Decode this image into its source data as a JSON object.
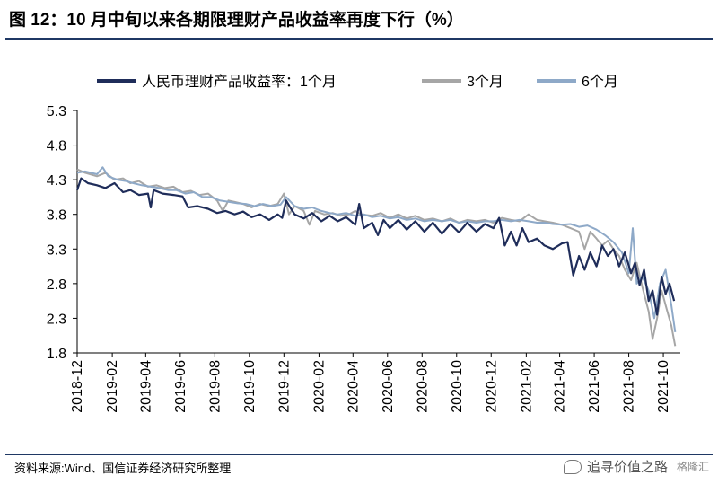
{
  "header": {
    "title": "图 12：10 月中旬以来各期限理财产品收益率再度下行（%）"
  },
  "footer": {
    "source": "资料来源:Wind、国信证券经济研究所整理",
    "watermark": "追寻价值之路",
    "watermark_brand": "格隆汇"
  },
  "chart_data": {
    "type": "line",
    "title": "",
    "xlabel": "",
    "ylabel": "",
    "ylim": [
      1.8,
      5.3
    ],
    "yticks": [
      1.8,
      2.3,
      2.8,
      3.3,
      3.8,
      4.3,
      4.8,
      5.3
    ],
    "xlim": [
      "2018-12-01",
      "2021-10-31"
    ],
    "xticks": [
      "2018-12",
      "2019-02",
      "2019-04",
      "2019-06",
      "2019-08",
      "2019-10",
      "2019-12",
      "2020-02",
      "2020-04",
      "2020-06",
      "2020-08",
      "2020-10",
      "2020-12",
      "2021-02",
      "2021-04",
      "2021-06",
      "2021-08",
      "2021-10"
    ],
    "grid": false,
    "legend_position": "top",
    "series": [
      {
        "name": "人民币理财产品收益率：1个月",
        "color": "#1f2d5a",
        "points": [
          [
            "2018-12-01",
            4.15
          ],
          [
            "2018-12-08",
            4.32
          ],
          [
            "2018-12-20",
            4.25
          ],
          [
            "2019-01-05",
            4.22
          ],
          [
            "2019-01-20",
            4.18
          ],
          [
            "2019-02-05",
            4.25
          ],
          [
            "2019-02-20",
            4.12
          ],
          [
            "2019-03-05",
            4.15
          ],
          [
            "2019-03-20",
            4.08
          ],
          [
            "2019-04-05",
            4.1
          ],
          [
            "2019-04-10",
            3.9
          ],
          [
            "2019-04-15",
            4.15
          ],
          [
            "2019-05-01",
            4.1
          ],
          [
            "2019-05-20",
            4.08
          ],
          [
            "2019-06-05",
            4.06
          ],
          [
            "2019-06-15",
            3.9
          ],
          [
            "2019-07-01",
            3.92
          ],
          [
            "2019-07-20",
            3.88
          ],
          [
            "2019-08-05",
            3.82
          ],
          [
            "2019-08-20",
            3.85
          ],
          [
            "2019-09-05",
            3.8
          ],
          [
            "2019-09-20",
            3.84
          ],
          [
            "2019-10-05",
            3.76
          ],
          [
            "2019-10-20",
            3.8
          ],
          [
            "2019-11-05",
            3.72
          ],
          [
            "2019-11-20",
            3.8
          ],
          [
            "2019-11-28",
            3.75
          ],
          [
            "2019-12-05",
            4.0
          ],
          [
            "2019-12-12",
            3.9
          ],
          [
            "2019-12-20",
            3.8
          ],
          [
            "2020-01-05",
            3.74
          ],
          [
            "2020-01-20",
            3.82
          ],
          [
            "2020-02-05",
            3.7
          ],
          [
            "2020-02-20",
            3.78
          ],
          [
            "2020-03-05",
            3.7
          ],
          [
            "2020-03-20",
            3.76
          ],
          [
            "2020-04-05",
            3.65
          ],
          [
            "2020-04-12",
            3.95
          ],
          [
            "2020-04-20",
            3.6
          ],
          [
            "2020-05-05",
            3.68
          ],
          [
            "2020-05-15",
            3.5
          ],
          [
            "2020-05-25",
            3.72
          ],
          [
            "2020-06-05",
            3.6
          ],
          [
            "2020-06-20",
            3.72
          ],
          [
            "2020-07-05",
            3.58
          ],
          [
            "2020-07-20",
            3.7
          ],
          [
            "2020-08-05",
            3.55
          ],
          [
            "2020-08-20",
            3.68
          ],
          [
            "2020-09-05",
            3.52
          ],
          [
            "2020-09-20",
            3.66
          ],
          [
            "2020-10-05",
            3.54
          ],
          [
            "2020-10-20",
            3.68
          ],
          [
            "2020-11-05",
            3.55
          ],
          [
            "2020-11-20",
            3.66
          ],
          [
            "2020-12-05",
            3.6
          ],
          [
            "2020-12-15",
            3.75
          ],
          [
            "2020-12-25",
            3.35
          ],
          [
            "2021-01-05",
            3.55
          ],
          [
            "2021-01-15",
            3.35
          ],
          [
            "2021-01-25",
            3.6
          ],
          [
            "2021-02-05",
            3.4
          ],
          [
            "2021-02-20",
            3.45
          ],
          [
            "2021-03-05",
            3.35
          ],
          [
            "2021-03-20",
            3.3
          ],
          [
            "2021-04-05",
            3.38
          ],
          [
            "2021-04-15",
            3.4
          ],
          [
            "2021-04-25",
            2.92
          ],
          [
            "2021-05-05",
            3.2
          ],
          [
            "2021-05-15",
            3.0
          ],
          [
            "2021-05-25",
            3.25
          ],
          [
            "2021-06-05",
            3.05
          ],
          [
            "2021-06-15",
            3.35
          ],
          [
            "2021-06-25",
            3.2
          ],
          [
            "2021-07-05",
            3.3
          ],
          [
            "2021-07-15",
            3.05
          ],
          [
            "2021-07-25",
            3.25
          ],
          [
            "2021-08-05",
            2.95
          ],
          [
            "2021-08-12",
            3.1
          ],
          [
            "2021-08-20",
            2.78
          ],
          [
            "2021-08-28",
            3.0
          ],
          [
            "2021-09-05",
            2.55
          ],
          [
            "2021-09-12",
            2.7
          ],
          [
            "2021-09-20",
            2.35
          ],
          [
            "2021-09-28",
            2.9
          ],
          [
            "2021-10-05",
            2.65
          ],
          [
            "2021-10-12",
            2.8
          ],
          [
            "2021-10-20",
            2.55
          ]
        ]
      },
      {
        "name": "3个月",
        "color": "#a6a6a6",
        "points": [
          [
            "2018-12-01",
            4.45
          ],
          [
            "2018-12-15",
            4.4
          ],
          [
            "2019-01-05",
            4.35
          ],
          [
            "2019-01-20",
            4.4
          ],
          [
            "2019-02-05",
            4.3
          ],
          [
            "2019-02-20",
            4.32
          ],
          [
            "2019-03-05",
            4.25
          ],
          [
            "2019-03-20",
            4.28
          ],
          [
            "2019-04-05",
            4.2
          ],
          [
            "2019-04-20",
            4.22
          ],
          [
            "2019-05-05",
            4.18
          ],
          [
            "2019-05-20",
            4.2
          ],
          [
            "2019-06-05",
            4.12
          ],
          [
            "2019-06-20",
            4.14
          ],
          [
            "2019-07-05",
            4.08
          ],
          [
            "2019-07-20",
            4.1
          ],
          [
            "2019-08-05",
            4.0
          ],
          [
            "2019-08-15",
            3.85
          ],
          [
            "2019-08-25",
            4.0
          ],
          [
            "2019-09-05",
            3.98
          ],
          [
            "2019-09-20",
            3.95
          ],
          [
            "2019-10-05",
            3.9
          ],
          [
            "2019-10-20",
            3.95
          ],
          [
            "2019-11-05",
            3.92
          ],
          [
            "2019-11-20",
            3.95
          ],
          [
            "2019-12-01",
            4.1
          ],
          [
            "2019-12-10",
            3.8
          ],
          [
            "2019-12-20",
            3.92
          ],
          [
            "2020-01-05",
            3.85
          ],
          [
            "2020-01-15",
            3.65
          ],
          [
            "2020-01-25",
            3.85
          ],
          [
            "2020-02-10",
            3.8
          ],
          [
            "2020-02-25",
            3.82
          ],
          [
            "2020-03-10",
            3.78
          ],
          [
            "2020-03-25",
            3.8
          ],
          [
            "2020-04-05",
            3.85
          ],
          [
            "2020-04-15",
            3.8
          ],
          [
            "2020-05-05",
            3.78
          ],
          [
            "2020-05-20",
            3.82
          ],
          [
            "2020-06-05",
            3.75
          ],
          [
            "2020-06-20",
            3.8
          ],
          [
            "2020-07-05",
            3.74
          ],
          [
            "2020-07-20",
            3.78
          ],
          [
            "2020-08-05",
            3.72
          ],
          [
            "2020-08-20",
            3.74
          ],
          [
            "2020-09-05",
            3.7
          ],
          [
            "2020-09-20",
            3.74
          ],
          [
            "2020-10-05",
            3.68
          ],
          [
            "2020-10-20",
            3.72
          ],
          [
            "2020-11-05",
            3.7
          ],
          [
            "2020-11-20",
            3.72
          ],
          [
            "2020-12-05",
            3.68
          ],
          [
            "2020-12-20",
            3.75
          ],
          [
            "2021-01-05",
            3.72
          ],
          [
            "2021-01-20",
            3.7
          ],
          [
            "2021-02-05",
            3.8
          ],
          [
            "2021-02-20",
            3.72
          ],
          [
            "2021-03-05",
            3.7
          ],
          [
            "2021-03-20",
            3.68
          ],
          [
            "2021-04-05",
            3.65
          ],
          [
            "2021-04-20",
            3.6
          ],
          [
            "2021-05-05",
            3.55
          ],
          [
            "2021-05-15",
            3.3
          ],
          [
            "2021-05-25",
            3.55
          ],
          [
            "2021-06-05",
            3.45
          ],
          [
            "2021-06-15",
            3.35
          ],
          [
            "2021-06-25",
            3.42
          ],
          [
            "2021-07-05",
            3.3
          ],
          [
            "2021-07-15",
            3.2
          ],
          [
            "2021-07-25",
            3.0
          ],
          [
            "2021-08-05",
            2.85
          ],
          [
            "2021-08-15",
            3.1
          ],
          [
            "2021-08-25",
            2.75
          ],
          [
            "2021-09-05",
            2.4
          ],
          [
            "2021-09-12",
            2.0
          ],
          [
            "2021-09-20",
            2.3
          ],
          [
            "2021-09-28",
            2.7
          ],
          [
            "2021-10-08",
            2.4
          ],
          [
            "2021-10-15",
            2.2
          ],
          [
            "2021-10-22",
            1.9
          ]
        ]
      },
      {
        "name": "6个月",
        "color": "#8ea9c8",
        "points": [
          [
            "2018-12-01",
            4.4
          ],
          [
            "2018-12-15",
            4.42
          ],
          [
            "2019-01-05",
            4.38
          ],
          [
            "2019-01-15",
            4.48
          ],
          [
            "2019-01-25",
            4.35
          ],
          [
            "2019-02-10",
            4.3
          ],
          [
            "2019-02-25",
            4.28
          ],
          [
            "2019-03-10",
            4.25
          ],
          [
            "2019-03-25",
            4.22
          ],
          [
            "2019-04-10",
            4.2
          ],
          [
            "2019-04-25",
            4.18
          ],
          [
            "2019-05-10",
            4.15
          ],
          [
            "2019-05-25",
            4.15
          ],
          [
            "2019-06-10",
            4.1
          ],
          [
            "2019-06-25",
            4.12
          ],
          [
            "2019-07-10",
            4.05
          ],
          [
            "2019-07-25",
            4.05
          ],
          [
            "2019-08-10",
            4.0
          ],
          [
            "2019-08-25",
            3.98
          ],
          [
            "2019-09-10",
            3.96
          ],
          [
            "2019-09-25",
            3.95
          ],
          [
            "2019-10-10",
            3.92
          ],
          [
            "2019-10-25",
            3.95
          ],
          [
            "2019-11-10",
            3.92
          ],
          [
            "2019-11-25",
            3.94
          ],
          [
            "2019-12-05",
            4.05
          ],
          [
            "2019-12-20",
            3.92
          ],
          [
            "2020-01-05",
            3.88
          ],
          [
            "2020-01-20",
            3.9
          ],
          [
            "2020-02-05",
            3.85
          ],
          [
            "2020-02-20",
            3.82
          ],
          [
            "2020-03-05",
            3.8
          ],
          [
            "2020-03-20",
            3.82
          ],
          [
            "2020-04-05",
            3.78
          ],
          [
            "2020-04-20",
            3.8
          ],
          [
            "2020-05-05",
            3.76
          ],
          [
            "2020-05-20",
            3.78
          ],
          [
            "2020-06-05",
            3.74
          ],
          [
            "2020-06-20",
            3.76
          ],
          [
            "2020-07-05",
            3.72
          ],
          [
            "2020-07-20",
            3.74
          ],
          [
            "2020-08-05",
            3.7
          ],
          [
            "2020-08-20",
            3.72
          ],
          [
            "2020-09-05",
            3.7
          ],
          [
            "2020-09-20",
            3.72
          ],
          [
            "2020-10-05",
            3.68
          ],
          [
            "2020-10-20",
            3.7
          ],
          [
            "2020-11-05",
            3.68
          ],
          [
            "2020-11-20",
            3.7
          ],
          [
            "2020-12-05",
            3.7
          ],
          [
            "2020-12-20",
            3.72
          ],
          [
            "2021-01-05",
            3.7
          ],
          [
            "2021-01-20",
            3.72
          ],
          [
            "2021-02-05",
            3.7
          ],
          [
            "2021-02-20",
            3.68
          ],
          [
            "2021-03-05",
            3.68
          ],
          [
            "2021-03-20",
            3.66
          ],
          [
            "2021-04-05",
            3.65
          ],
          [
            "2021-04-20",
            3.66
          ],
          [
            "2021-05-05",
            3.62
          ],
          [
            "2021-05-20",
            3.64
          ],
          [
            "2021-06-05",
            3.58
          ],
          [
            "2021-06-20",
            3.5
          ],
          [
            "2021-07-05",
            3.4
          ],
          [
            "2021-07-20",
            3.25
          ],
          [
            "2021-08-01",
            2.95
          ],
          [
            "2021-08-08",
            3.6
          ],
          [
            "2021-08-15",
            2.8
          ],
          [
            "2021-08-25",
            2.9
          ],
          [
            "2021-09-05",
            2.7
          ],
          [
            "2021-09-15",
            2.3
          ],
          [
            "2021-09-25",
            2.8
          ],
          [
            "2021-10-05",
            3.0
          ],
          [
            "2021-10-15",
            2.5
          ],
          [
            "2021-10-22",
            2.1
          ]
        ]
      }
    ]
  }
}
